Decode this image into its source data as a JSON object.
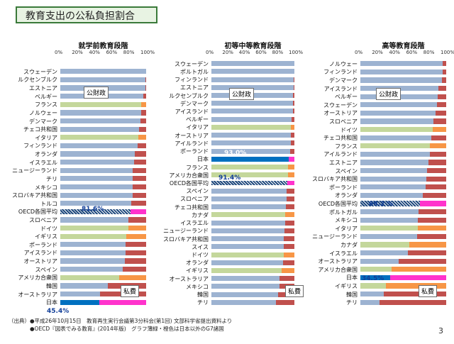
{
  "title": "教育支出の公私負担割合",
  "labels": {
    "public": "公財政",
    "private": "私費"
  },
  "colors": {
    "public": "#9db3d1",
    "private": "#c0504d",
    "japan": "#0070c0",
    "g7": "#c4d79b",
    "g7_private": "#f79646",
    "oecd_public": "#1f497d",
    "oecd_private": "#ff33cc"
  },
  "footer": {
    "lead": "（出典）",
    "line1": "●平成26年10月15日　教育再生実行会議第3分科会(第1回) 文部科学省提出資料より",
    "line2": "●OECD『図表でみる教育』(2014年版)　グラフ薄緑・橙色は日本以外のG7諸国"
  },
  "page_number": "3",
  "chart_data": [
    {
      "type": "bar",
      "title": "就学前教育段階",
      "ticks": [
        "0%",
        "20%",
        "40%",
        "60%",
        "80%",
        "100%"
      ],
      "xlim": [
        0,
        100
      ],
      "series": [
        {
          "name": "公財政"
        },
        {
          "name": "私費"
        }
      ],
      "value_labels": {
        "OECD各国平均": "81.6%",
        "日本": "45.4%"
      },
      "rows": [
        {
          "name": "スウェーデン",
          "public": 100,
          "group": "normal"
        },
        {
          "name": "ルクセンブルク",
          "public": 99,
          "group": "normal"
        },
        {
          "name": "エストニア",
          "public": 99,
          "group": "normal"
        },
        {
          "name": "ベルギー",
          "public": 97,
          "group": "normal"
        },
        {
          "name": "フランス",
          "public": 94,
          "group": "g7"
        },
        {
          "name": "ノルウェー",
          "public": 94,
          "group": "normal"
        },
        {
          "name": "デンマーク",
          "public": 93,
          "group": "normal"
        },
        {
          "name": "チェコ共和国",
          "public": 92,
          "group": "normal"
        },
        {
          "name": "イタリア",
          "public": 91,
          "group": "g7"
        },
        {
          "name": "フィンランド",
          "public": 90,
          "group": "normal"
        },
        {
          "name": "オランダ",
          "public": 87,
          "group": "normal"
        },
        {
          "name": "イスラエル",
          "public": 86,
          "group": "normal"
        },
        {
          "name": "ニュージーランド",
          "public": 84,
          "group": "normal"
        },
        {
          "name": "チリ",
          "public": 84,
          "group": "normal"
        },
        {
          "name": "メキシコ",
          "public": 84,
          "group": "normal"
        },
        {
          "name": "スロバキア共和国",
          "public": 84,
          "group": "normal"
        },
        {
          "name": "トルコ",
          "public": 83,
          "group": "normal"
        },
        {
          "name": "OECD各国平均",
          "public": 81.6,
          "group": "oecd"
        },
        {
          "name": "スロベニア",
          "public": 79,
          "group": "normal"
        },
        {
          "name": "ドイツ",
          "public": 79,
          "group": "g7"
        },
        {
          "name": "イギリス",
          "public": 77,
          "group": "g7"
        },
        {
          "name": "ポーランド",
          "public": 76,
          "group": "normal"
        },
        {
          "name": "アイスランド",
          "public": 76,
          "group": "normal"
        },
        {
          "name": "オーストリア",
          "public": 75,
          "group": "normal"
        },
        {
          "name": "スペイン",
          "public": 73,
          "group": "normal"
        },
        {
          "name": "アメリカ合衆国",
          "public": 69,
          "group": "g7"
        },
        {
          "name": "韓国",
          "public": 55,
          "group": "normal"
        },
        {
          "name": "オーストラリア",
          "public": 46,
          "group": "normal"
        },
        {
          "name": "日本",
          "public": 45.4,
          "group": "japan"
        }
      ]
    },
    {
      "type": "bar",
      "title": "初等中等教育段階",
      "ticks": [
        "0%",
        "20%",
        "40%",
        "60%",
        "80%",
        "100%"
      ],
      "xlim": [
        0,
        100
      ],
      "series": [
        {
          "name": "公財政"
        },
        {
          "name": "私費"
        }
      ],
      "value_labels": {
        "日本": "93.0%",
        "OECD各国平均": "91.4%"
      },
      "rows": [
        {
          "name": "スウェーデン",
          "public": 100,
          "group": "normal"
        },
        {
          "name": "ポルトガル",
          "public": 100,
          "group": "normal"
        },
        {
          "name": "フィンランド",
          "public": 99,
          "group": "normal"
        },
        {
          "name": "エストニア",
          "public": 99,
          "group": "normal"
        },
        {
          "name": "ルクセンブルク",
          "public": 98,
          "group": "normal"
        },
        {
          "name": "デンマーク",
          "public": 98,
          "group": "normal"
        },
        {
          "name": "アイスランド",
          "public": 98,
          "group": "normal"
        },
        {
          "name": "ベルギー",
          "public": 97,
          "group": "normal"
        },
        {
          "name": "イタリア",
          "public": 96,
          "group": "g7"
        },
        {
          "name": "オーストリア",
          "public": 96,
          "group": "normal"
        },
        {
          "name": "アイルランド",
          "public": 96,
          "group": "normal"
        },
        {
          "name": "ポーランド",
          "public": 95,
          "group": "normal"
        },
        {
          "name": "日本",
          "public": 93.0,
          "group": "japan"
        },
        {
          "name": "フランス",
          "public": 92,
          "group": "g7"
        },
        {
          "name": "アメリカ合衆国",
          "public": 92,
          "group": "g7"
        },
        {
          "name": "OECD各国平均",
          "public": 91.4,
          "group": "oecd"
        },
        {
          "name": "スペイン",
          "public": 91,
          "group": "normal"
        },
        {
          "name": "スロベニア",
          "public": 91,
          "group": "normal"
        },
        {
          "name": "チェコ共和国",
          "public": 90,
          "group": "normal"
        },
        {
          "name": "カナダ",
          "public": 89,
          "group": "g7"
        },
        {
          "name": "イスラエル",
          "public": 89,
          "group": "normal"
        },
        {
          "name": "ニュージーランド",
          "public": 88,
          "group": "normal"
        },
        {
          "name": "スロバキア共和国",
          "public": 87,
          "group": "normal"
        },
        {
          "name": "スイス",
          "public": 87,
          "group": "normal"
        },
        {
          "name": "ドイツ",
          "public": 87,
          "group": "g7"
        },
        {
          "name": "オランダ",
          "public": 86,
          "group": "normal"
        },
        {
          "name": "イギリス",
          "public": 85,
          "group": "g7"
        },
        {
          "name": "オーストラリア",
          "public": 82,
          "group": "normal"
        },
        {
          "name": "メキシコ",
          "public": 82,
          "group": "normal"
        },
        {
          "name": "韓国",
          "public": 80,
          "group": "normal"
        },
        {
          "name": "チリ",
          "public": 78,
          "group": "normal"
        }
      ]
    },
    {
      "type": "bar",
      "title": "高等教育段階",
      "ticks": [
        "0%",
        "20%",
        "40%",
        "60%",
        "80%",
        "100%"
      ],
      "xlim": [
        0,
        100
      ],
      "series": [
        {
          "name": "公財政"
        },
        {
          "name": "私費"
        }
      ],
      "value_labels": {
        "OECD各国平均": "69.2 %",
        "日本": "34.5%"
      },
      "rows": [
        {
          "name": "ノルウェー",
          "public": 96,
          "group": "normal"
        },
        {
          "name": "フィンランド",
          "public": 96,
          "group": "normal"
        },
        {
          "name": "デンマーク",
          "public": 95,
          "group": "normal"
        },
        {
          "name": "アイスランド",
          "public": 91,
          "group": "normal"
        },
        {
          "name": "ベルギー",
          "public": 90,
          "group": "normal"
        },
        {
          "name": "スウェーデン",
          "public": 89,
          "group": "normal"
        },
        {
          "name": "オーストリア",
          "public": 88,
          "group": "normal"
        },
        {
          "name": "スロベニア",
          "public": 85,
          "group": "normal"
        },
        {
          "name": "ドイツ",
          "public": 84,
          "group": "g7"
        },
        {
          "name": "チェコ共和国",
          "public": 83,
          "group": "normal"
        },
        {
          "name": "フランス",
          "public": 81,
          "group": "g7"
        },
        {
          "name": "アイルランド",
          "public": 81,
          "group": "normal"
        },
        {
          "name": "エストニア",
          "public": 79,
          "group": "normal"
        },
        {
          "name": "スペイン",
          "public": 78,
          "group": "normal"
        },
        {
          "name": "スロバキア共和国",
          "public": 77,
          "group": "normal"
        },
        {
          "name": "ポーランド",
          "public": 76,
          "group": "normal"
        },
        {
          "name": "オランダ",
          "public": 73,
          "group": "normal"
        },
        {
          "name": "OECD各国平均",
          "public": 69.2,
          "group": "oecd"
        },
        {
          "name": "ポルトガル",
          "public": 68,
          "group": "normal"
        },
        {
          "name": "メキシコ",
          "public": 67,
          "group": "normal"
        },
        {
          "name": "イタリア",
          "public": 67,
          "group": "g7"
        },
        {
          "name": "ニュージーランド",
          "public": 66,
          "group": "normal"
        },
        {
          "name": "カナダ",
          "public": 57,
          "group": "g7"
        },
        {
          "name": "イスラエル",
          "public": 55,
          "group": "normal"
        },
        {
          "name": "オーストラリア",
          "public": 45,
          "group": "normal"
        },
        {
          "name": "アメリカ合衆国",
          "public": 36,
          "group": "g7"
        },
        {
          "name": "日本",
          "public": 34.5,
          "group": "japan"
        },
        {
          "name": "イギリス",
          "public": 30,
          "group": "g7"
        },
        {
          "name": "韓国",
          "public": 27,
          "group": "normal"
        },
        {
          "name": "チリ",
          "public": 22,
          "group": "normal"
        }
      ]
    }
  ]
}
